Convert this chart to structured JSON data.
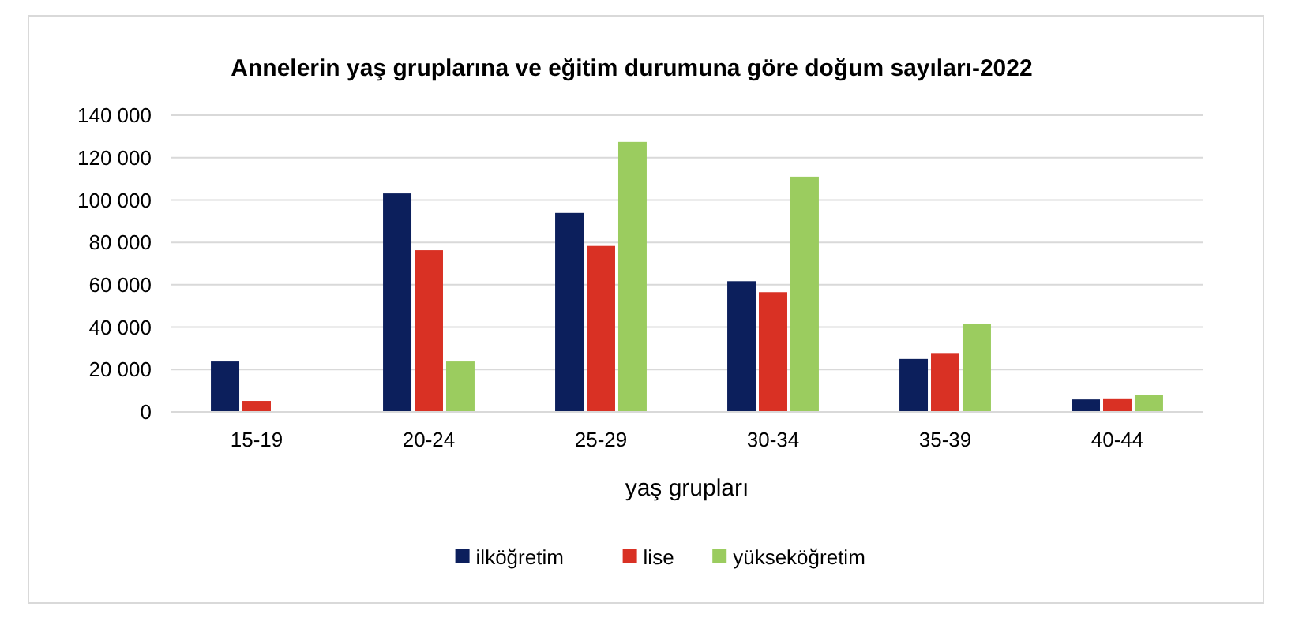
{
  "chart_data": {
    "type": "bar",
    "title": "Annelerin yaş gruplarına ve eğitim durumuna göre doğum sayıları-2022",
    "xlabel": "yaş grupları",
    "categories": [
      "15-19",
      "20-24",
      "25-29",
      "30-34",
      "35-39",
      "40-44"
    ],
    "series": [
      {
        "name": "ilköğretim",
        "color": "#0c1f5c",
        "values": [
          23800,
          103100,
          93900,
          61700,
          25000,
          5900
        ]
      },
      {
        "name": "lise",
        "color": "#d93124",
        "values": [
          5200,
          76300,
          78300,
          56500,
          27800,
          6400
        ]
      },
      {
        "name": "yükseköğretim",
        "color": "#9bcc5f",
        "values": [
          0,
          23800,
          127400,
          111000,
          41400,
          7900
        ]
      }
    ],
    "ylim": [
      0,
      140000
    ],
    "yticks": [
      {
        "value": 0,
        "label": "0"
      },
      {
        "value": 20000,
        "label": "20 000"
      },
      {
        "value": 40000,
        "label": "40 000"
      },
      {
        "value": 60000,
        "label": "60 000"
      },
      {
        "value": 80000,
        "label": "80 000"
      },
      {
        "value": 100000,
        "label": "100 000"
      },
      {
        "value": 120000,
        "label": "120 000"
      },
      {
        "value": 140000,
        "label": "140 000"
      }
    ],
    "grid": "y",
    "legend": "bottom"
  }
}
